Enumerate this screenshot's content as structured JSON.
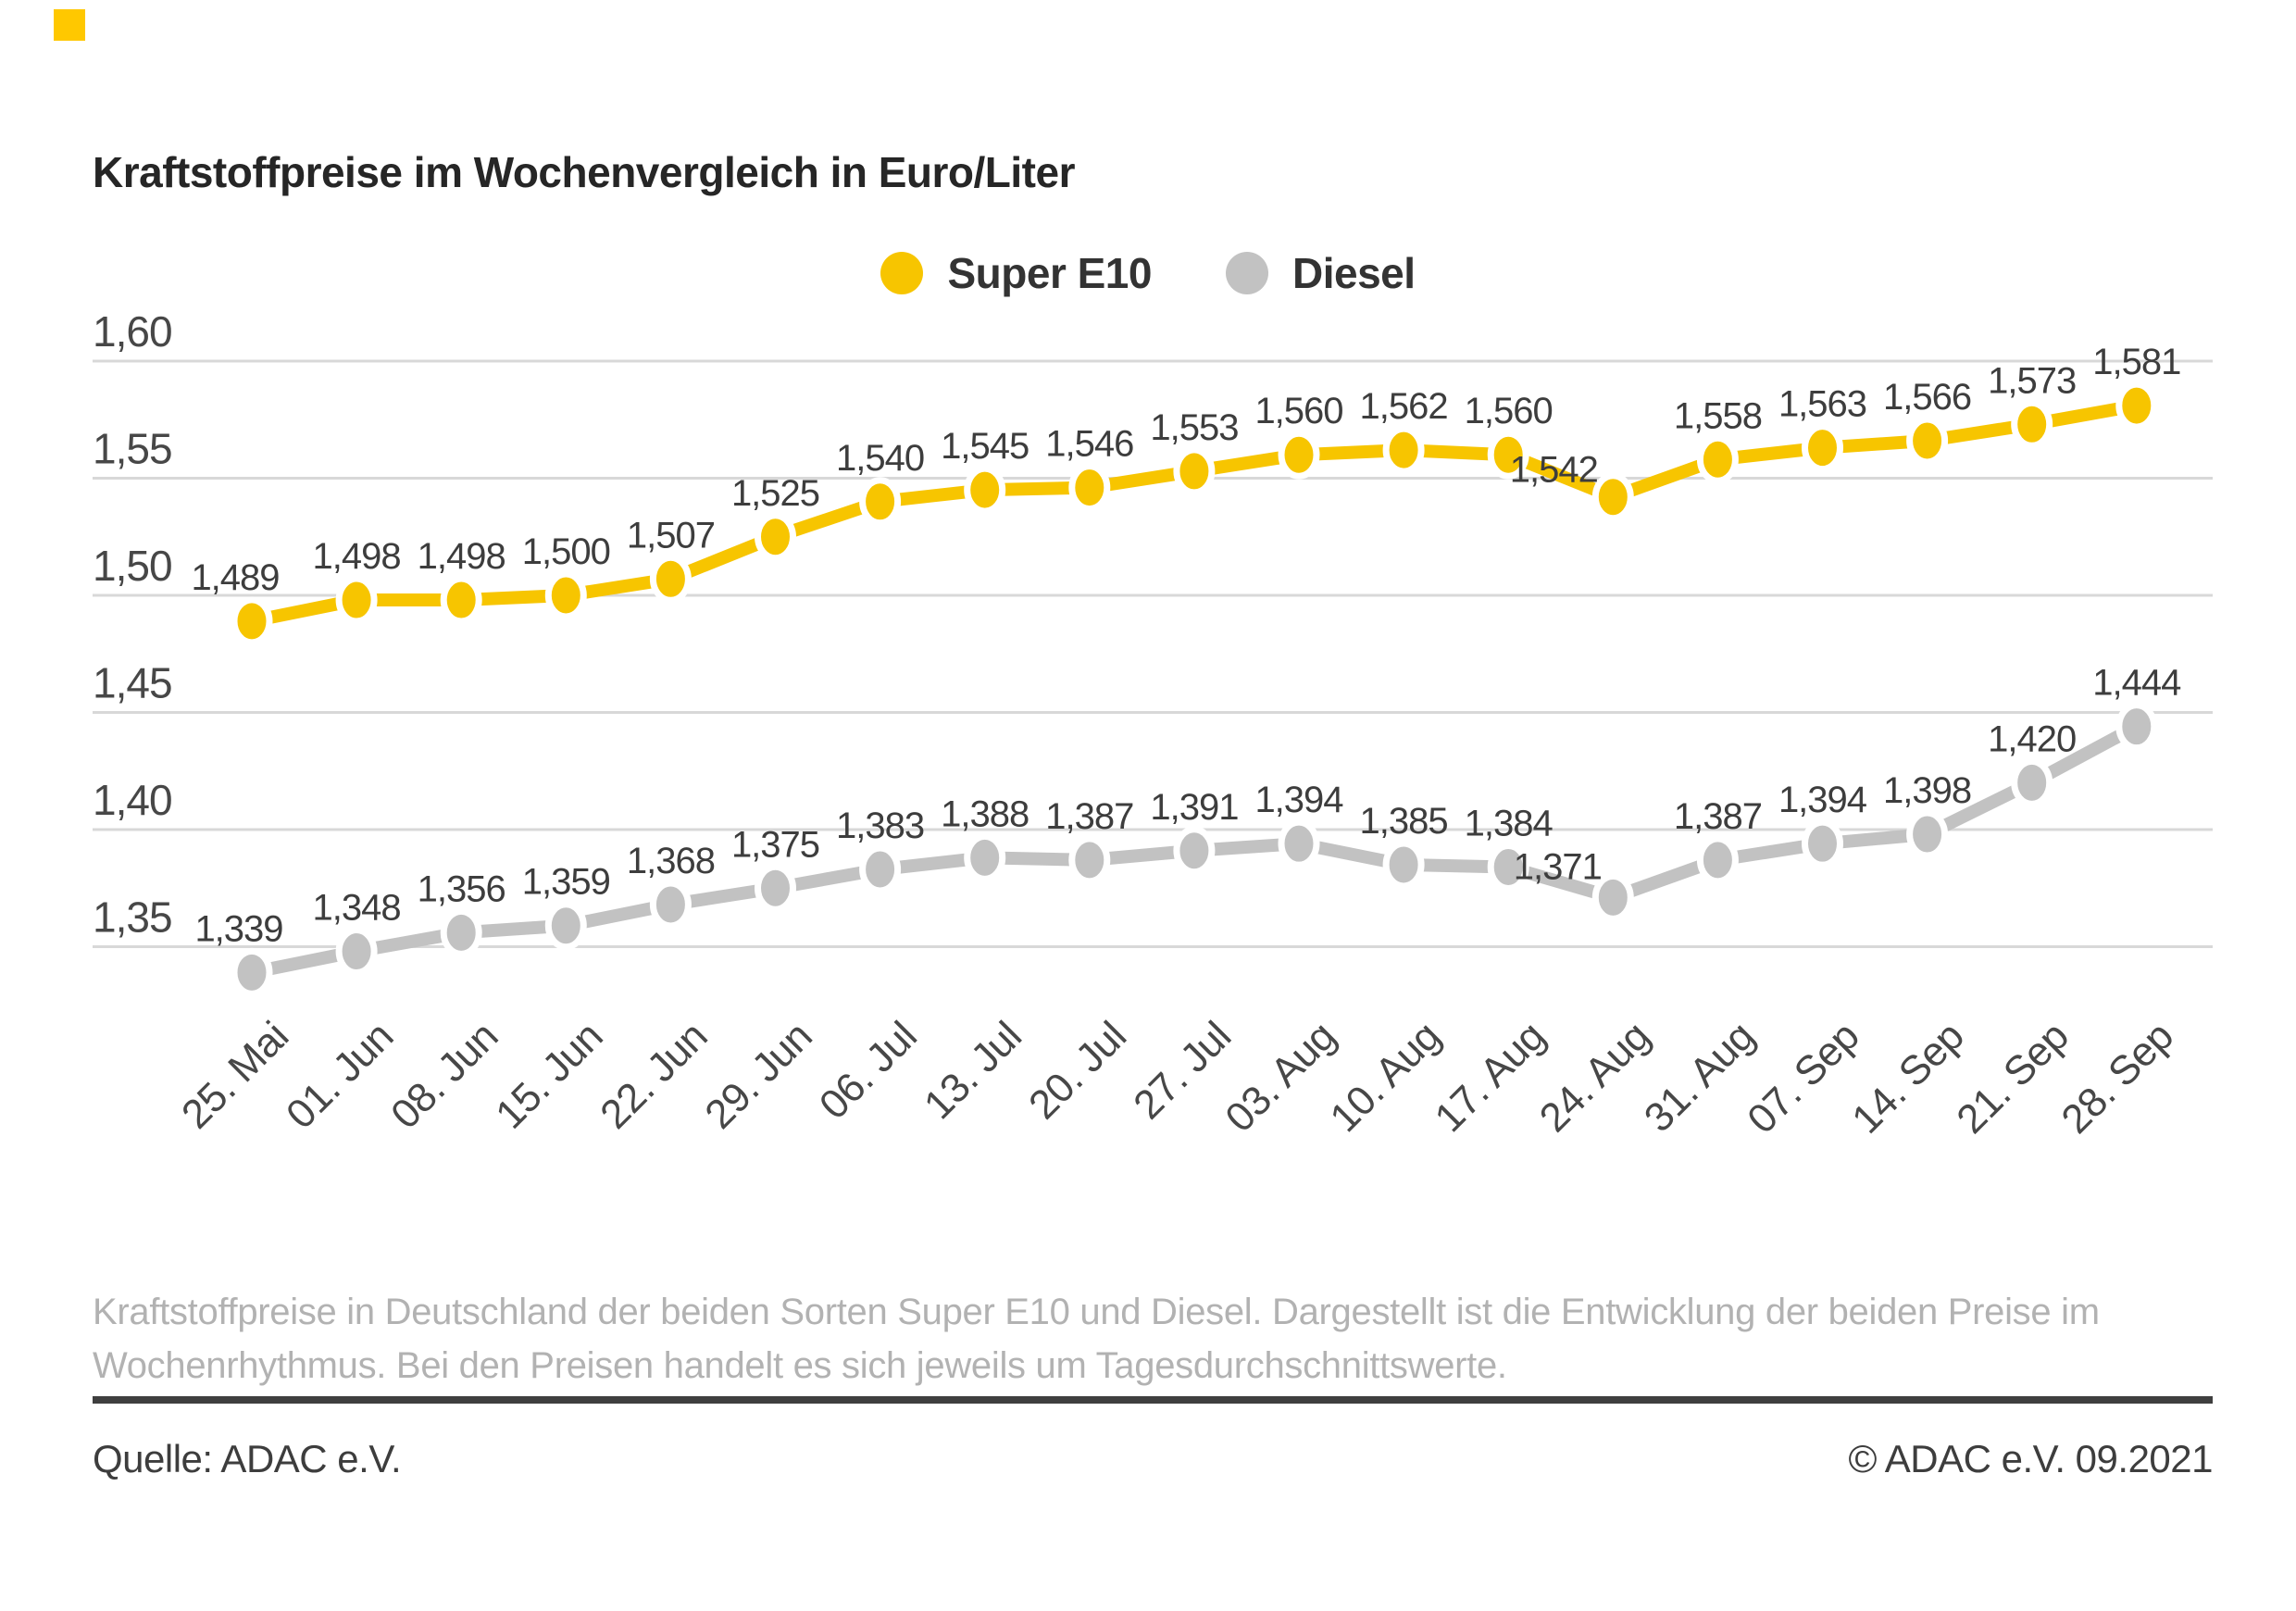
{
  "header": {
    "title": "Kraftstoffpreise im Wochenvergleich in Euro/Liter"
  },
  "brand": {
    "mark_color": "#FFC800"
  },
  "chart_data": {
    "type": "line",
    "title": "Kraftstoffpreise im Wochenvergleich in Euro/Liter",
    "x": [
      "25. Mai",
      "01. Jun",
      "08. Jun",
      "15. Jun",
      "22. Jun",
      "29. Jun",
      "06. Jul",
      "13. Jul",
      "20. Jul",
      "27. Jul",
      "03. Aug",
      "10. Aug",
      "17. Aug",
      "24. Aug",
      "31. Aug",
      "07. Sep",
      "14. Sep",
      "21. Sep",
      "28. Sep"
    ],
    "series": [
      {
        "name": "Super E10",
        "color": "#F7C500",
        "values": [
          1.489,
          1.498,
          1.498,
          1.5,
          1.507,
          1.525,
          1.54,
          1.545,
          1.546,
          1.553,
          1.56,
          1.562,
          1.56,
          1.542,
          1.558,
          1.563,
          1.566,
          1.573,
          1.581
        ]
      },
      {
        "name": "Diesel",
        "color": "#C2C2C2",
        "values": [
          1.339,
          1.348,
          1.356,
          1.359,
          1.368,
          1.375,
          1.383,
          1.388,
          1.387,
          1.391,
          1.394,
          1.385,
          1.384,
          1.371,
          1.387,
          1.394,
          1.398,
          1.42,
          1.444
        ]
      }
    ],
    "xlabel": "",
    "ylabel": "",
    "yticks": [
      1.6,
      1.55,
      1.5,
      1.45,
      1.4,
      1.35
    ],
    "ylim": [
      1.33,
      1.62
    ],
    "grid": true,
    "grid_color": "#D8D8D8",
    "legend_position": "top-center",
    "decimal_separator": ",",
    "value_labels": true
  },
  "footer": {
    "description": "Kraftstoffpreise in Deutschland der beiden Sorten Super E10 und Diesel. Dargestellt ist die Entwicklung der beiden Preise im Wochenrhythmus. Bei den Preisen handelt es sich jeweils um Tagesdurchschnittswerte.",
    "source": "Quelle: ADAC e.V.",
    "copyright": "© ADAC e.V. 09.2021"
  }
}
